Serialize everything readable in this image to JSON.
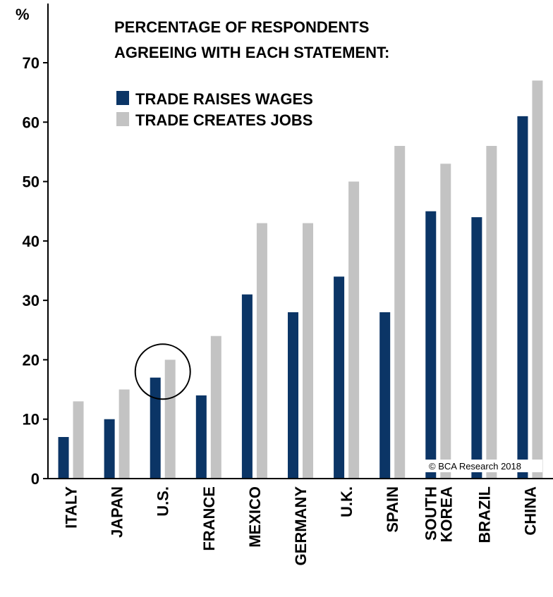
{
  "chart_data": {
    "type": "bar",
    "title_lines": [
      "PERCENTAGE OF RESPONDENTS",
      "AGREEING WITH EACH STATEMENT:"
    ],
    "ylabel": "%",
    "ylim": [
      0,
      80
    ],
    "yticks": [
      "0",
      "10",
      "20",
      "30",
      "40",
      "50",
      "60",
      "70"
    ],
    "categories": [
      [
        "ITALY"
      ],
      [
        "JAPAN"
      ],
      [
        "U.S."
      ],
      [
        "FRANCE"
      ],
      [
        "MEXICO"
      ],
      [
        "GERMANY"
      ],
      [
        "U.K."
      ],
      [
        "SPAIN"
      ],
      [
        "SOUTH",
        "KOREA"
      ],
      [
        "BRAZIL"
      ],
      [
        "CHINA"
      ]
    ],
    "series": [
      {
        "name": "TRADE RAISES WAGES",
        "color": "#0b3566",
        "values": [
          7,
          10,
          17,
          14,
          31,
          28,
          34,
          28,
          45,
          44,
          61
        ]
      },
      {
        "name": "TRADE CREATES JOBS",
        "color": "#c3c3c3",
        "values": [
          13,
          15,
          20,
          24,
          43,
          43,
          50,
          56,
          53,
          56,
          67
        ]
      }
    ],
    "highlight_category": "U.S.",
    "credit": "© BCA Research 2018",
    "grid": false,
    "legend_position": "top-left"
  }
}
